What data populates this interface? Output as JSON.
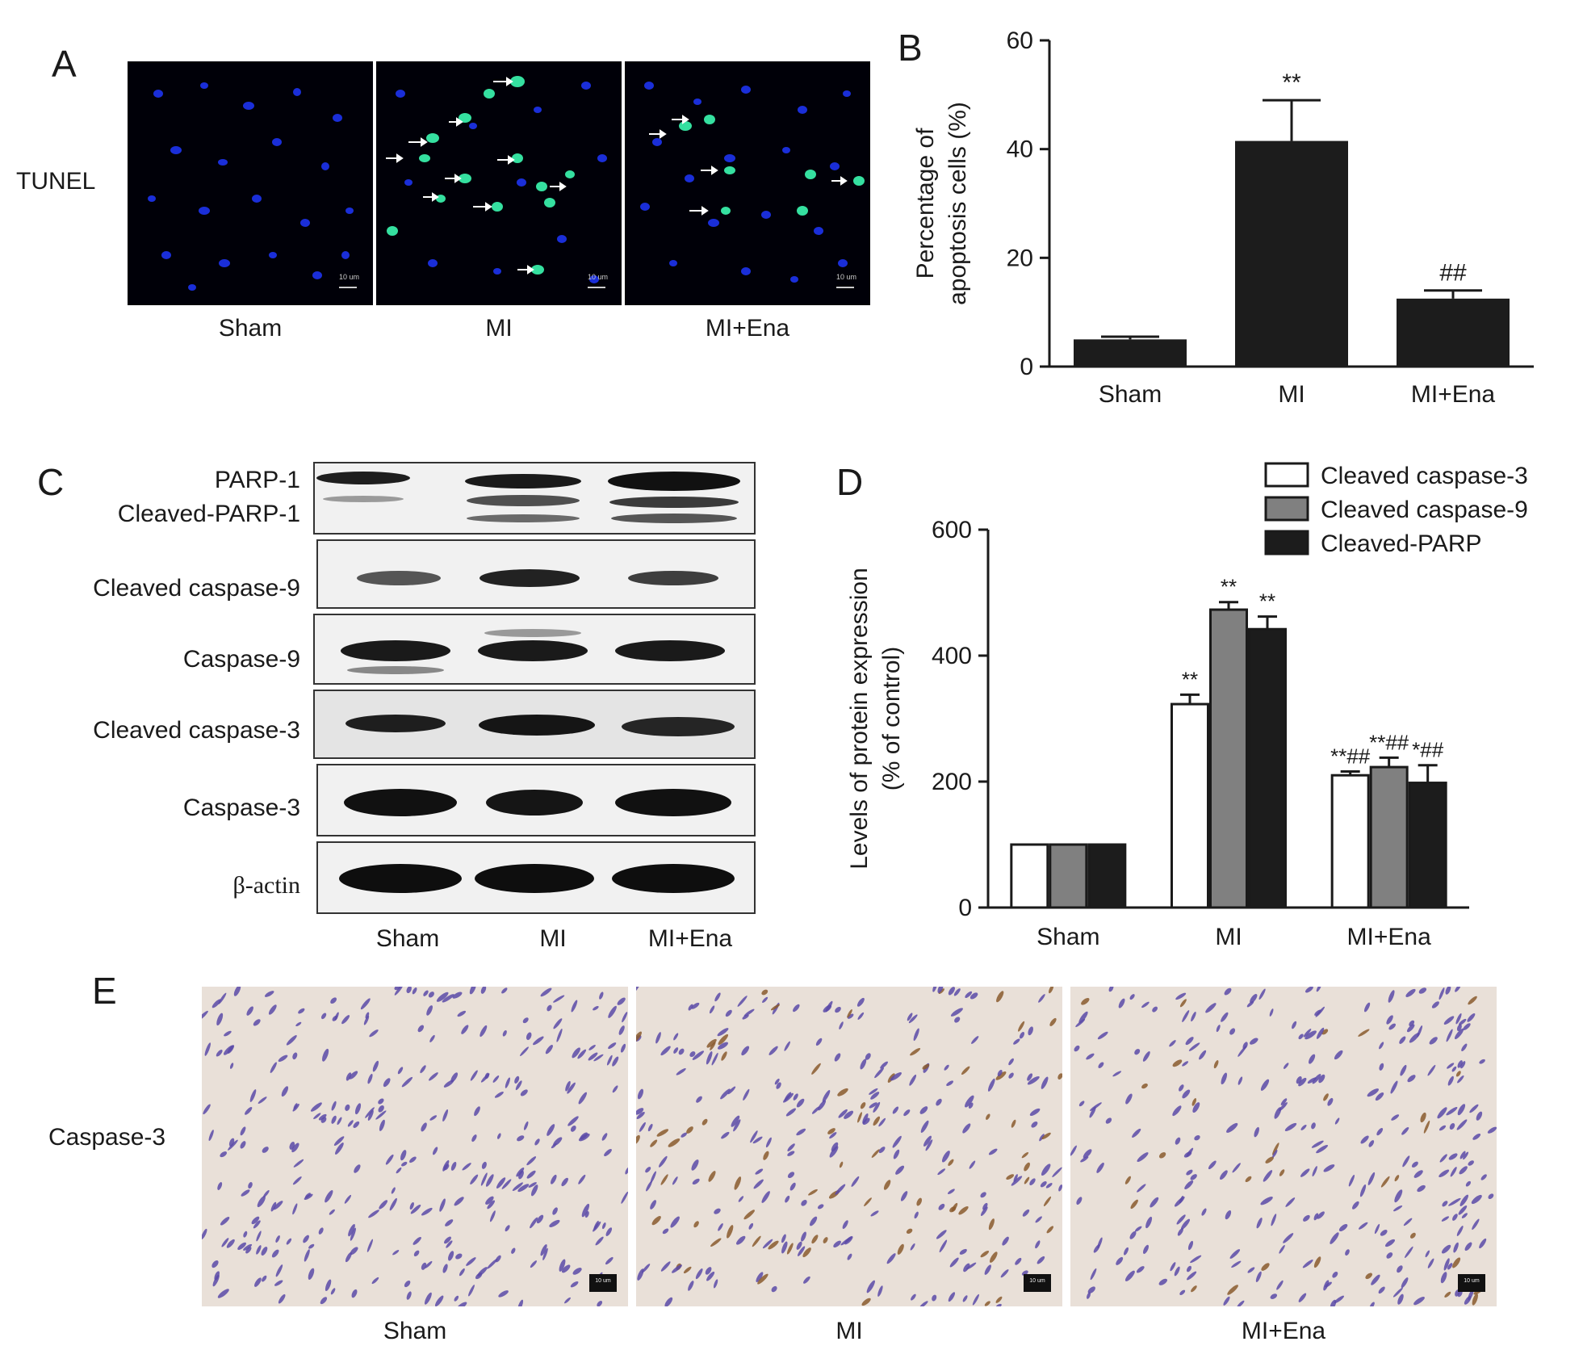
{
  "panel_letters": {
    "A": "A",
    "B": "B",
    "C": "C",
    "D": "D",
    "E": "E"
  },
  "panel_a": {
    "row_label": "TUNEL",
    "columns": [
      "Sham",
      "MI",
      "MI+Ena"
    ],
    "scale_bar": "10 um"
  },
  "panel_c": {
    "rows": [
      "PARP-1",
      "Cleaved-PARP-1",
      "Cleaved caspase-9",
      "Caspase-9",
      "Cleaved caspase-3",
      "Caspase-3",
      "β-actin"
    ],
    "columns": [
      "Sham",
      "MI",
      "MI+Ena"
    ]
  },
  "panel_e": {
    "row_label": "Caspase-3",
    "columns": [
      "Sham",
      "MI",
      "MI+Ena"
    ],
    "scale_bar": "10 um"
  },
  "chart_data": [
    {
      "id": "B",
      "type": "bar",
      "categories": [
        "Sham",
        "MI",
        "MI+Ena"
      ],
      "values": [
        5,
        41.5,
        12.5
      ],
      "errors": [
        0.5,
        7.5,
        1.5
      ],
      "annotations": [
        "",
        "**",
        "##"
      ],
      "ylabel_line1": "Percentage of",
      "ylabel_line2": "apoptosis cells (%)",
      "ylim": [
        0,
        60
      ],
      "yticks": [
        0,
        20,
        40,
        60
      ],
      "color": "#1c1c1c"
    },
    {
      "id": "D",
      "type": "bar",
      "categories": [
        "Sham",
        "MI",
        "MI+Ena"
      ],
      "series": [
        {
          "name": "Cleaved caspase-3",
          "values": [
            100,
            323,
            210
          ],
          "errors": [
            0,
            15,
            6
          ],
          "annotations": [
            "",
            "**",
            "**##"
          ],
          "color": "#ffffff"
        },
        {
          "name": "Cleaved caspase-9",
          "values": [
            100,
            473,
            223
          ],
          "errors": [
            0,
            12,
            15
          ],
          "annotations": [
            "",
            "**",
            "**##"
          ],
          "color": "#808080"
        },
        {
          "name": "Cleaved-PARP",
          "values": [
            100,
            442,
            198
          ],
          "errors": [
            0,
            20,
            28
          ],
          "annotations": [
            "",
            "**",
            "*##"
          ],
          "color": "#1c1c1c"
        }
      ],
      "ylabel_line1": "Levels of protein expression",
      "ylabel_line2": "(% of control)",
      "ylim": [
        0,
        600
      ],
      "yticks": [
        0,
        200,
        400,
        600
      ],
      "legend": "top-right"
    }
  ]
}
